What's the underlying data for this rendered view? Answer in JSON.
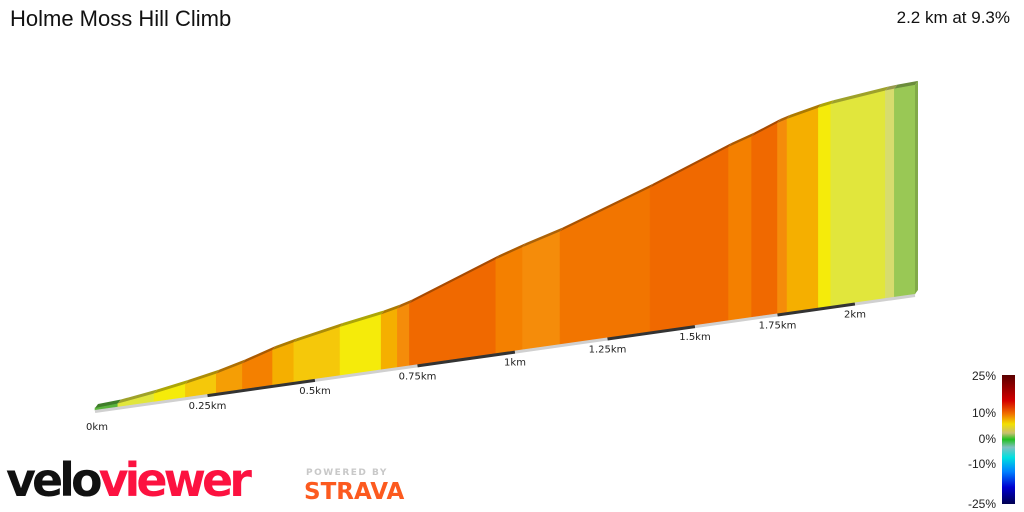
{
  "header": {
    "title": "Holme Moss Hill Climb",
    "summary": "2.2 km at 9.3%"
  },
  "chart_data": {
    "type": "area",
    "title": "Holme Moss Hill Climb",
    "xlabel": "",
    "ylabel": "",
    "x_unit": "km",
    "xlim": [
      0,
      2.2
    ],
    "x_ticks": [
      "0km",
      "0.25km",
      "0.5km",
      "0.75km",
      "1km",
      "1.25km",
      "1.5km",
      "1.75km",
      "2km"
    ],
    "x_tick_values": [
      0,
      0.25,
      0.5,
      0.75,
      1,
      1.25,
      1.5,
      1.75,
      2
    ],
    "segments_note_free": true,
    "segments": [
      {
        "start": 0,
        "end": 0.05,
        "gradient": 2
      },
      {
        "start": 0.05,
        "end": 0.13,
        "gradient": 5
      },
      {
        "start": 0.13,
        "end": 0.2,
        "gradient": 6
      },
      {
        "start": 0.2,
        "end": 0.27,
        "gradient": 7
      },
      {
        "start": 0.27,
        "end": 0.33,
        "gradient": 9
      },
      {
        "start": 0.33,
        "end": 0.4,
        "gradient": 11
      },
      {
        "start": 0.4,
        "end": 0.45,
        "gradient": 8
      },
      {
        "start": 0.45,
        "end": 0.56,
        "gradient": 7
      },
      {
        "start": 0.56,
        "end": 0.66,
        "gradient": 6
      },
      {
        "start": 0.66,
        "end": 0.7,
        "gradient": 8
      },
      {
        "start": 0.7,
        "end": 0.73,
        "gradient": 10
      },
      {
        "start": 0.73,
        "end": 0.95,
        "gradient": 13
      },
      {
        "start": 0.95,
        "end": 1.02,
        "gradient": 11
      },
      {
        "start": 1.02,
        "end": 1.12,
        "gradient": 10
      },
      {
        "start": 1.12,
        "end": 1.37,
        "gradient": 12
      },
      {
        "start": 1.37,
        "end": 1.6,
        "gradient": 13
      },
      {
        "start": 1.6,
        "end": 1.67,
        "gradient": 11
      },
      {
        "start": 1.67,
        "end": 1.75,
        "gradient": 13
      },
      {
        "start": 1.75,
        "end": 1.78,
        "gradient": 10
      },
      {
        "start": 1.78,
        "end": 1.88,
        "gradient": 8
      },
      {
        "start": 1.88,
        "end": 1.92,
        "gradient": 6
      },
      {
        "start": 1.92,
        "end": 2.1,
        "gradient": 5
      },
      {
        "start": 2.1,
        "end": 2.13,
        "gradient": 4
      },
      {
        "start": 2.13,
        "end": 2.2,
        "gradient": 3
      }
    ],
    "legend": {
      "labels": [
        "25%",
        "10%",
        "0%",
        "-10%",
        "-25%"
      ],
      "values": [
        25,
        10,
        0,
        -10,
        -25
      ],
      "placement": "bottom-right"
    }
  },
  "branding": {
    "logo_text_1": "velo",
    "logo_text_2": "viewer",
    "powered_by": "POWERED BY",
    "strava": "STRAVA"
  }
}
